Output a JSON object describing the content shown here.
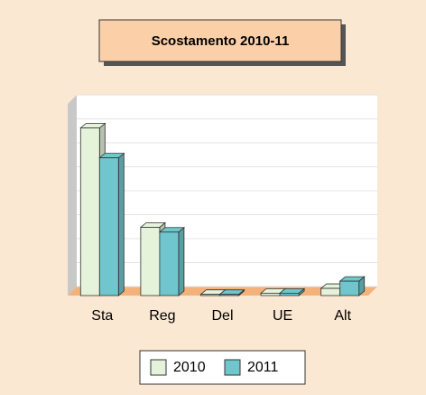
{
  "chart_data": {
    "type": "bar3d",
    "title": "Scostamento 2010-11",
    "categories": [
      "Sta",
      "Reg",
      "Del",
      "UE",
      "Alt"
    ],
    "series": [
      {
        "name": "2010",
        "color": "#e4f3d9",
        "values": [
          7.0,
          2.85,
          0.05,
          0.1,
          0.3
        ]
      },
      {
        "name": "2011",
        "color": "#6fc6cc",
        "values": [
          5.75,
          2.65,
          0.05,
          0.1,
          0.6
        ]
      }
    ],
    "ylim": [
      0,
      8
    ],
    "yticks": [
      0,
      1,
      2,
      3,
      4,
      5,
      6,
      7,
      8
    ],
    "grid": true
  }
}
